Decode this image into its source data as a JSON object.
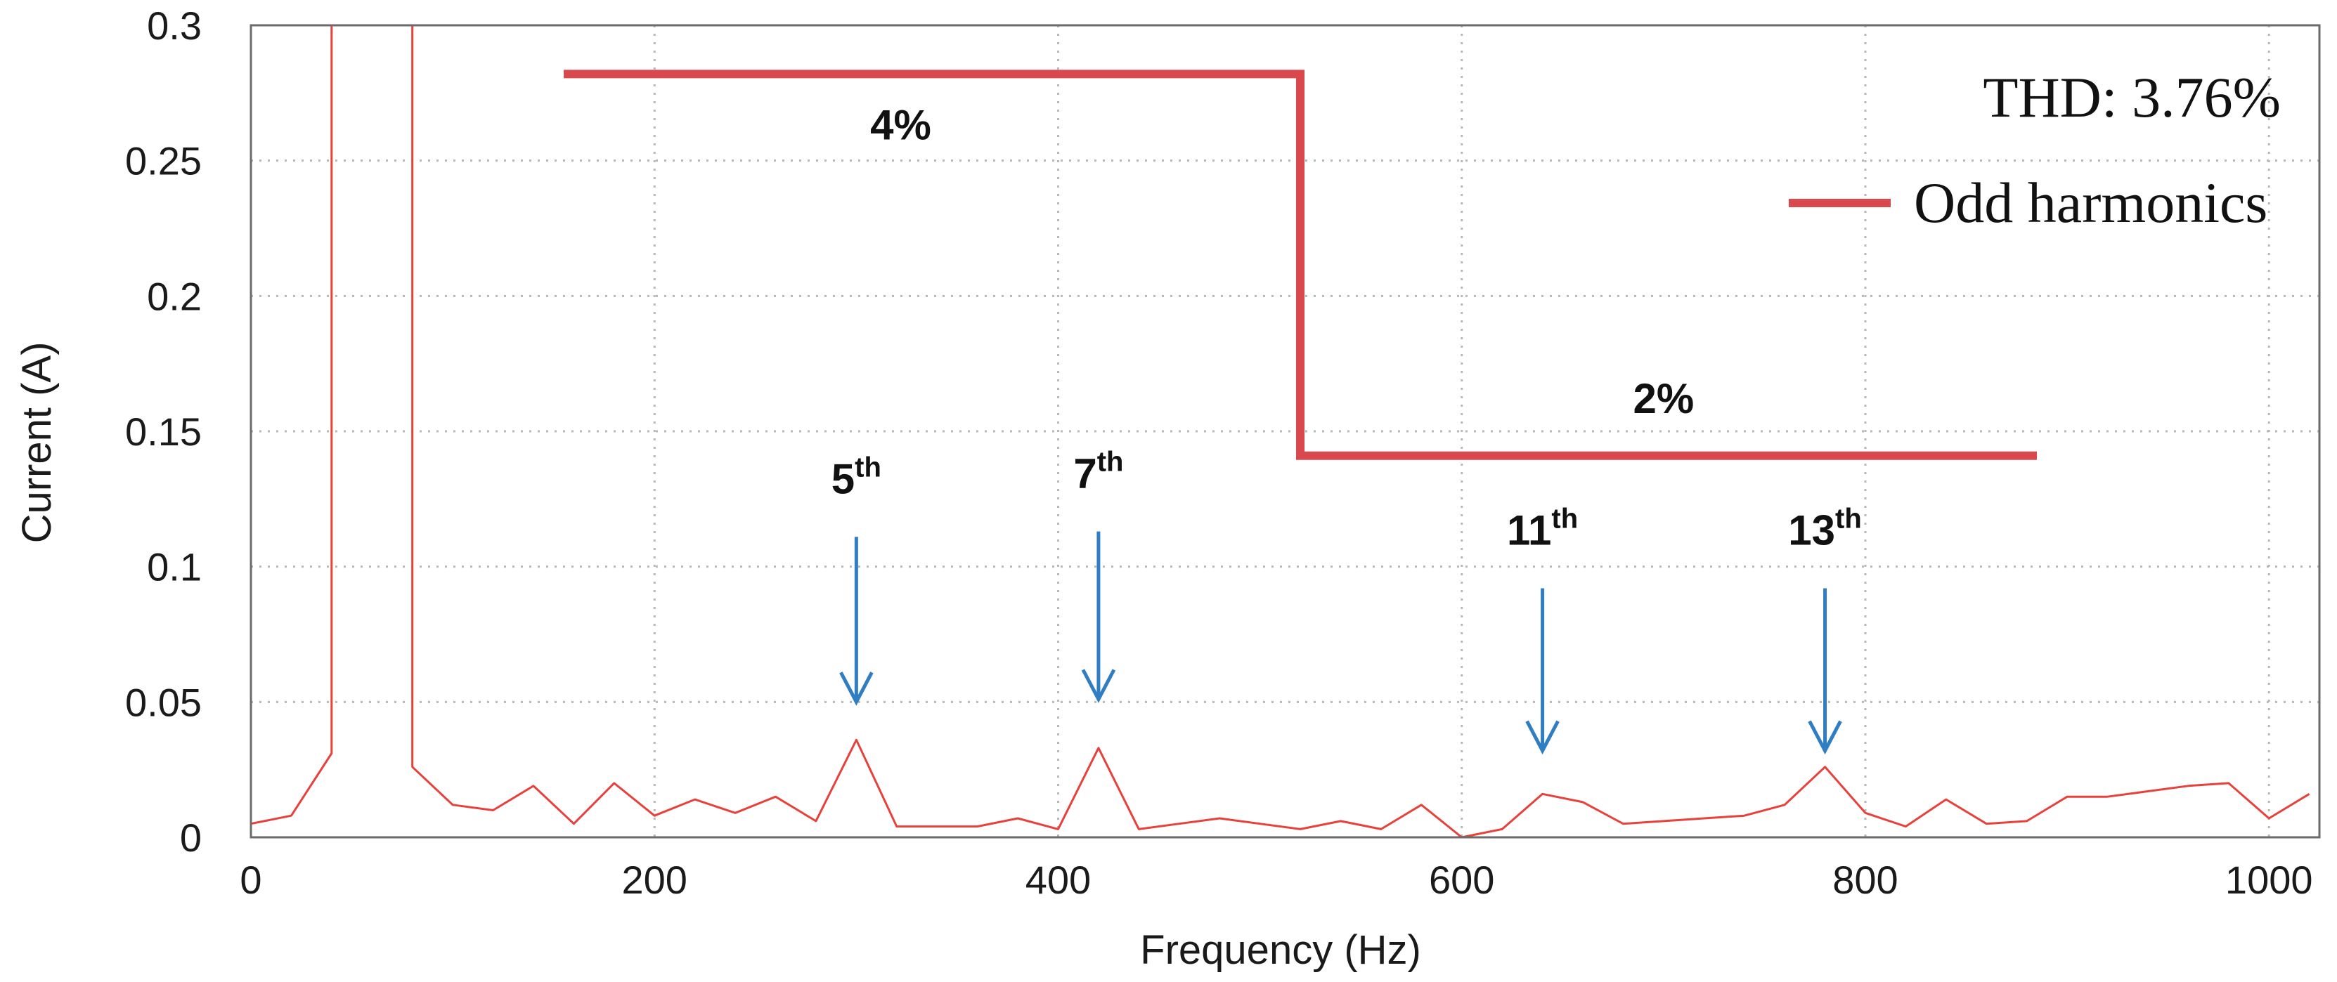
{
  "chart_data": {
    "type": "line",
    "xlabel": "Frequency (Hz)",
    "ylabel": "Current (A)",
    "xlim": [
      0,
      1025
    ],
    "ylim": [
      0,
      0.3
    ],
    "xticks": [
      0,
      200,
      400,
      600,
      800,
      1000
    ],
    "xtick_labels": [
      "0",
      "200",
      "400",
      "600",
      "800",
      "1000"
    ],
    "yticks": [
      0,
      0.05,
      0.1,
      0.15,
      0.2,
      0.25,
      0.3
    ],
    "ytick_labels": [
      "0",
      "0.05",
      "0.1",
      "0.15",
      "0.2",
      "0.25",
      "0.3"
    ],
    "grid": true,
    "colors": {
      "spectrum": "#e8413c",
      "limit": "#d9484d",
      "arrow": "#2f7ec4"
    },
    "spectrum": {
      "x": [
        0,
        20,
        40,
        40,
        80,
        80,
        100,
        120,
        140,
        160,
        180,
        200,
        220,
        240,
        260,
        280,
        300,
        320,
        340,
        360,
        380,
        400,
        420,
        440,
        460,
        480,
        500,
        520,
        540,
        560,
        580,
        600,
        620,
        640,
        660,
        680,
        700,
        720,
        740,
        760,
        780,
        800,
        820,
        840,
        860,
        880,
        900,
        920,
        940,
        960,
        980,
        1000,
        1020
      ],
      "y": [
        0.005,
        0.008,
        0.031,
        0.3,
        0.3,
        0.026,
        0.012,
        0.01,
        0.019,
        0.005,
        0.02,
        0.008,
        0.014,
        0.009,
        0.015,
        0.006,
        0.036,
        0.004,
        0.004,
        0.004,
        0.007,
        0.003,
        0.033,
        0.003,
        0.005,
        0.007,
        0.005,
        0.003,
        0.006,
        0.003,
        0.012,
        0.0,
        0.003,
        0.016,
        0.013,
        0.005,
        0.006,
        0.007,
        0.008,
        0.012,
        0.026,
        0.009,
        0.004,
        0.014,
        0.005,
        0.006,
        0.015,
        0.015,
        0.017,
        0.019,
        0.02,
        0.007,
        0.016
      ]
    },
    "limit_line": {
      "name": "Odd harmonics",
      "x": [
        155,
        520,
        520,
        885
      ],
      "y": [
        0.282,
        0.282,
        0.141,
        0.141
      ]
    },
    "limit_labels": [
      {
        "text": "4%",
        "x": 322,
        "y": 0.263
      },
      {
        "text": "2%",
        "x": 700,
        "y": 0.162
      }
    ],
    "harmonics": [
      {
        "label": "5",
        "sup": "th",
        "x": 300,
        "arrow_from": 0.111,
        "arrow_to": 0.05
      },
      {
        "label": "7",
        "sup": "th",
        "x": 420,
        "arrow_from": 0.113,
        "arrow_to": 0.051
      },
      {
        "label": "11",
        "sup": "th",
        "x": 640,
        "arrow_from": 0.092,
        "arrow_to": 0.032
      },
      {
        "label": "13",
        "sup": "th",
        "x": 780,
        "arrow_from": 0.092,
        "arrow_to": 0.032
      }
    ],
    "annotation": "THD: 3.76%",
    "legend": {
      "entries": [
        "Odd harmonics"
      ],
      "position": "top-right"
    }
  }
}
